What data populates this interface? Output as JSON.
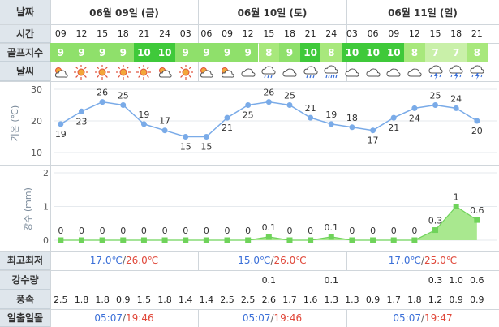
{
  "labels": {
    "date": "날짜",
    "time": "시간",
    "golf_index": "골프지수",
    "weather": "날씨",
    "temp_axis": "기온 (℃)",
    "rain_axis": "강수 (mm)",
    "min_max": "최고최저",
    "precip": "강수량",
    "wind": "풍속",
    "sun": "일출일몰"
  },
  "days": [
    {
      "label": "06월 09일 (금)",
      "min": "17.0℃",
      "max": "26.0℃",
      "sunrise": "05:07",
      "sunset": "19:46"
    },
    {
      "label": "06월 10일 (토)",
      "min": "15.0℃",
      "max": "26.0℃",
      "sunrise": "05:07",
      "sunset": "19:46"
    },
    {
      "label": "06월 11일 (일)",
      "min": "17.0℃",
      "max": "25.0℃",
      "sunrise": "05:07",
      "sunset": "19:47"
    }
  ],
  "hours": [
    "09",
    "12",
    "15",
    "18",
    "21",
    "24",
    "03",
    "06",
    "09",
    "12",
    "15",
    "18",
    "21",
    "24",
    "03",
    "06",
    "09",
    "12",
    "15",
    "18",
    "21"
  ],
  "golf": [
    "9",
    "9",
    "9",
    "9",
    "10",
    "10",
    "9",
    "9",
    "9",
    "9",
    "8",
    "9",
    "10",
    "8",
    "10",
    "10",
    "10",
    "8",
    "7",
    "7",
    "8"
  ],
  "weather_icons": [
    "partly-cloudy-icon",
    "sun-icon",
    "sun-icon",
    "sun-icon",
    "sun-icon",
    "partly-cloudy-icon",
    "sun-icon",
    "partly-cloudy-icon",
    "partly-cloudy-icon",
    "cloud-icon",
    "rain-icon",
    "cloud-icon",
    "rain-icon",
    "heavy-rain-icon",
    "cloud-icon",
    "cloud-icon",
    "cloud-icon",
    "cloud-icon",
    "thunder-rain-icon",
    "thunder-rain-icon",
    "thunder-rain-icon"
  ],
  "precip": [
    "",
    "",
    "",
    "",
    "",
    "",
    "",
    "",
    "",
    "",
    "0.1",
    "",
    "",
    "0.1",
    "",
    "",
    "",
    "",
    "0.3",
    "1.0",
    "0.6"
  ],
  "wind": [
    "2.5",
    "1.8",
    "1.8",
    "0.9",
    "1.5",
    "1.8",
    "1.4",
    "1.4",
    "2.5",
    "2.5",
    "2.6",
    "1.7",
    "1.6",
    "1.3",
    "1.3",
    "0.9",
    "1.7",
    "1.8",
    "1.2",
    "0.9",
    "0.9"
  ],
  "colors": {
    "temp_line": "#7aabe8",
    "rain_fill": "#a9e88f",
    "rain_line": "#6fd35a",
    "golf_10": "#3fc93a",
    "golf_9": "#8fe06b",
    "golf_8": "#a8e87c",
    "golf_7": "#c9f0a9"
  },
  "chart_data": [
    {
      "type": "line",
      "ylabel": "기온 (℃)",
      "ylim": [
        10,
        30
      ],
      "y_ticks": [
        10,
        20,
        30
      ],
      "x": [
        "09",
        "12",
        "15",
        "18",
        "21",
        "24",
        "03",
        "06",
        "09",
        "12",
        "15",
        "18",
        "21",
        "24",
        "03",
        "06",
        "09",
        "12",
        "15",
        "18",
        "21"
      ],
      "values": [
        19,
        23,
        26,
        25,
        19,
        17,
        15,
        15,
        21,
        25,
        26,
        25,
        21,
        19,
        18,
        17,
        21,
        24,
        25,
        24,
        20
      ],
      "grid": true
    },
    {
      "type": "area",
      "ylabel": "강수 (mm)",
      "ylim": [
        0,
        2
      ],
      "y_ticks": [
        0,
        1,
        2
      ],
      "x": [
        "09",
        "12",
        "15",
        "18",
        "21",
        "24",
        "03",
        "06",
        "09",
        "12",
        "15",
        "18",
        "21",
        "24",
        "03",
        "06",
        "09",
        "12",
        "15",
        "18",
        "21"
      ],
      "values": [
        0,
        0,
        0,
        0,
        0,
        0,
        0,
        0,
        0,
        0,
        0.1,
        0,
        0,
        0.1,
        0,
        0,
        0,
        0,
        0.3,
        1,
        0.6
      ],
      "data_labels": [
        "0",
        "0",
        "0",
        "0",
        "0",
        "0",
        "0",
        "0",
        "0",
        "0",
        "0.1",
        "0",
        "0",
        "0.1",
        "0",
        "0",
        "0",
        "0",
        "0.3",
        "1",
        "0.6"
      ],
      "grid": true
    }
  ]
}
